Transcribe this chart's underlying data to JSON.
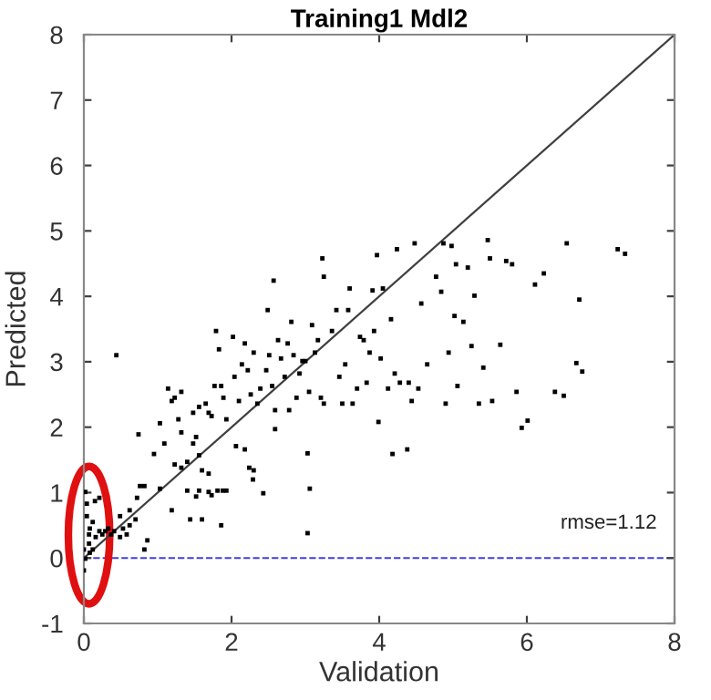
{
  "chart_data": {
    "type": "scatter",
    "title": "Training1 Mdl2",
    "xlabel": "Validation",
    "ylabel": "Predicted",
    "xlim": [
      0,
      8
    ],
    "ylim": [
      -1,
      8
    ],
    "xticks": [
      0,
      2,
      4,
      6,
      8
    ],
    "yticks": [
      -1,
      0,
      1,
      2,
      3,
      4,
      5,
      6,
      7,
      8
    ],
    "grid": false,
    "legend": false,
    "annotations": [
      "rmse=1.12"
    ],
    "ref_lines": [
      {
        "axis": "y",
        "value": 0,
        "label": null,
        "color": "#4040e0",
        "line_style": "dashed"
      }
    ],
    "series": [
      {
        "marker": "square",
        "color": "#000000",
        "x": [
          0.44,
          0.74,
          1.03,
          0.95,
          0.76,
          0.82,
          0.72,
          1.03,
          1.09,
          1.14,
          1.19,
          1.23,
          1.28,
          1.32,
          1.23,
          1.32,
          1.4,
          1.48,
          1.52,
          1.56,
          1.65,
          1.69,
          1.73,
          1.77,
          1.79,
          1.83,
          1.86,
          1.89,
          1.93,
          2.02,
          2.04,
          2.1,
          2.14,
          2.18,
          2.22,
          2.26,
          2.3,
          2.35,
          2.39,
          2.47,
          2.49,
          2.51,
          2.55,
          2.57,
          2.59,
          2.63,
          2.67,
          2.72,
          2.76,
          2.78,
          2.81,
          2.84,
          2.88,
          2.92,
          2.96,
          3.0,
          3.05,
          3.09,
          3.13,
          3.17,
          3.21,
          3.25,
          3.23,
          3.25,
          3.36,
          3.42,
          3.46,
          3.5,
          3.54,
          3.58,
          3.6,
          3.64,
          3.7,
          3.74,
          3.79,
          3.83,
          3.87,
          3.91,
          3.93,
          3.97,
          3.99,
          4.02,
          4.05,
          4.12,
          4.16,
          4.18,
          4.21,
          4.24,
          4.28,
          4.38,
          4.4,
          4.44,
          4.48,
          4.53,
          4.57,
          4.65,
          4.77,
          4.84,
          4.87,
          4.9,
          4.94,
          4.98,
          5.02,
          5.04,
          5.06,
          5.14,
          5.2,
          5.25,
          5.29,
          5.35,
          5.41,
          5.47,
          5.5,
          5.53,
          5.64,
          5.72,
          5.8,
          5.86,
          5.93,
          6.01,
          6.11,
          6.23,
          6.38,
          6.5,
          6.54,
          6.67,
          6.75,
          6.71,
          7.23,
          7.33,
          1.4,
          1.44,
          1.52,
          1.56,
          1.6,
          1.69,
          1.73,
          1.81,
          1.88,
          1.86,
          1.93,
          2.24,
          2.29,
          2.3,
          2.43,
          2.06,
          2.18,
          2.59,
          3.03,
          3.06,
          3.03,
          1.48,
          1.56,
          1.6,
          1.69,
          1.32,
          1.19,
          0,
          0,
          0.02,
          0.04,
          0.07,
          0.08,
          0.12,
          0.16,
          0.21,
          0.25,
          0.29,
          0.33,
          0.37,
          0.41,
          0.49,
          0.53,
          0.58,
          0.62,
          0.7,
          0.82,
          0.86,
          0.21,
          0.15,
          0.04,
          0.08,
          0.02,
          0.07,
          0.12,
          0.62,
          0.49
        ],
        "values": [
          3.1,
          1.89,
          2.06,
          1.59,
          1.1,
          1.1,
          0.92,
          1.06,
          1.75,
          2.59,
          2.4,
          2.45,
          2.12,
          2.54,
          1.43,
          1.38,
          1.47,
          2.22,
          1.85,
          2.31,
          2.36,
          2.22,
          2.17,
          2.63,
          3.47,
          3.19,
          2.63,
          2.45,
          2.12,
          3.38,
          2.77,
          2.4,
          2.96,
          3.28,
          2.87,
          2.5,
          3.14,
          2.36,
          2.59,
          2.87,
          3.79,
          3.1,
          2.63,
          4.24,
          2.26,
          3.33,
          3.05,
          2.77,
          3.28,
          2.26,
          3.61,
          3.1,
          2.45,
          2.82,
          3.01,
          3.01,
          2.54,
          3.56,
          3.14,
          3.33,
          2.45,
          2.36,
          4.58,
          4.3,
          3.47,
          3.79,
          2.77,
          2.36,
          2.96,
          3.79,
          4.12,
          2.36,
          2.59,
          3.38,
          3.33,
          2.68,
          3.14,
          4.09,
          3.47,
          4.63,
          2.08,
          3.05,
          4.12,
          2.59,
          3.65,
          1.59,
          2.82,
          4.72,
          2.68,
          1.66,
          2.68,
          2.4,
          4.81,
          2.59,
          3.89,
          2.96,
          4.3,
          4.07,
          4.81,
          2.36,
          3.14,
          4.77,
          3.7,
          4.49,
          2.63,
          3.61,
          4.44,
          3.24,
          4.01,
          2.36,
          2.91,
          4.86,
          4.58,
          2.4,
          3.26,
          4.54,
          4.49,
          2.54,
          1.99,
          2.1,
          4.18,
          4.35,
          2.54,
          2.48,
          4.81,
          2.98,
          2.85,
          3.95,
          4.72,
          4.65,
          1.03,
          0.59,
          0.94,
          1.03,
          0.59,
          1.01,
          0.96,
          1.03,
          1.03,
          0.5,
          1.03,
          1.38,
          1.2,
          1.34,
          0.99,
          1.71,
          1.66,
          1.97,
          1.6,
          1.06,
          0.38,
          1.75,
          1.57,
          1.34,
          1.29,
          1.92,
          0.73,
          0.13,
          -0.19,
          1.01,
          0.64,
          0.36,
          0.45,
          0.55,
          0.32,
          0.41,
          0.36,
          0.41,
          0.45,
          0.36,
          0.41,
          0.32,
          0.45,
          0.36,
          0.5,
          0.59,
          0.13,
          0.27,
          0.92,
          0.87,
          0.83,
          0.08,
          -0.01,
          0.22,
          0.13,
          0.73,
          0.64
        ]
      },
      {
        "type": "line",
        "color": "#404040",
        "x": [
          0,
          8
        ],
        "values": [
          0,
          8
        ]
      }
    ]
  }
}
